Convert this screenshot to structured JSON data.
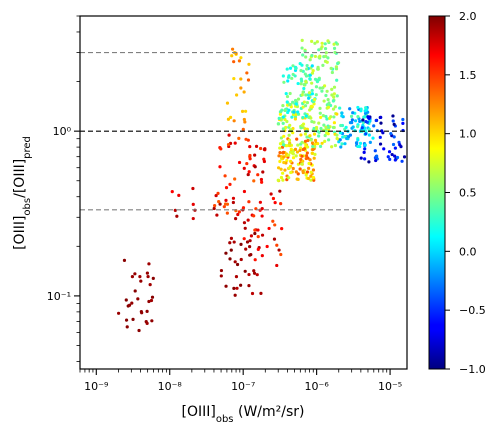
{
  "chart_data": {
    "type": "scatter",
    "title": "",
    "xlabel_html": "[OIII]<tspan baseline-shift='sub' font-size='10'>obs</tspan> (W/m²/sr)",
    "ylabel_html": "[OIII]<tspan baseline-shift='sub' font-size='10'>obs</tspan>/[OIII]<tspan baseline-shift='sub' font-size='10'>pred</tspan>",
    "xlabel_text": "[OIII]obs (W/m²/sr)",
    "ylabel_text": "[OIII]obs/[OIII]pred",
    "x_scale": "log",
    "y_scale": "log",
    "xlim": [
      6e-10,
      1.7e-05
    ],
    "ylim": [
      0.036,
      5.0
    ],
    "x_ticks": [
      {
        "value": 1e-09,
        "label": "10⁻⁹"
      },
      {
        "value": 1e-08,
        "label": "10⁻⁸"
      },
      {
        "value": 1e-07,
        "label": "10⁻⁷"
      },
      {
        "value": 1e-06,
        "label": "10⁻⁶"
      },
      {
        "value": 1e-05,
        "label": "10⁻⁵"
      }
    ],
    "y_ticks": [
      {
        "value": 0.1,
        "label": "10⁻¹"
      },
      {
        "value": 1.0,
        "label": "10⁰"
      }
    ],
    "reference_lines": [
      {
        "y": 3.0,
        "style": "dashed",
        "color": "#808080"
      },
      {
        "y": 1.0,
        "style": "dashed",
        "color": "#000000"
      },
      {
        "y": 0.333,
        "style": "dashed",
        "color": "#808080"
      }
    ],
    "grid": false,
    "colorbar": {
      "colormap": "jet",
      "min": -1.0,
      "max": 2.0,
      "ticks": [
        {
          "value": 2.0,
          "label": "2.0"
        },
        {
          "value": 1.5,
          "label": "1.5"
        },
        {
          "value": 1.0,
          "label": "1.0"
        },
        {
          "value": 0.5,
          "label": "0.5"
        },
        {
          "value": 0.0,
          "label": "0.0"
        },
        {
          "value": -0.5,
          "label": "−0.5"
        },
        {
          "value": -1.0,
          "label": "−1.0"
        }
      ]
    },
    "clusters": [
      {
        "x_range": [
          2e-09,
          6e-09
        ],
        "y_range": [
          0.055,
          0.19
        ],
        "c_range": [
          1.9,
          2.0
        ],
        "n": 30
      },
      {
        "x_range": [
          1e-08,
          2.5e-08
        ],
        "y_range": [
          0.22,
          0.45
        ],
        "c_range": [
          1.6,
          1.95
        ],
        "n": 8
      },
      {
        "x_range": [
          5e-08,
          1.8e-07
        ],
        "y_range": [
          0.1,
          0.3
        ],
        "c_range": [
          1.8,
          2.0
        ],
        "n": 35
      },
      {
        "x_range": [
          4e-08,
          2e-07
        ],
        "y_range": [
          0.3,
          1.0
        ],
        "c_range": [
          1.3,
          1.9
        ],
        "n": 60
      },
      {
        "x_range": [
          1e-07,
          3.5e-07
        ],
        "y_range": [
          0.15,
          0.45
        ],
        "c_range": [
          1.4,
          1.9
        ],
        "n": 35
      },
      {
        "x_range": [
          6e-08,
          1.2e-07
        ],
        "y_range": [
          1.0,
          3.4
        ],
        "c_range": [
          0.9,
          1.4
        ],
        "n": 25
      },
      {
        "x_range": [
          3e-07,
          1e-06
        ],
        "y_range": [
          0.5,
          0.9
        ],
        "c_range": [
          0.7,
          1.4
        ],
        "n": 120
      },
      {
        "x_range": [
          3e-07,
          2e-06
        ],
        "y_range": [
          0.8,
          1.5
        ],
        "c_range": [
          0.3,
          1.0
        ],
        "n": 150
      },
      {
        "x_range": [
          3.5e-07,
          1e-06
        ],
        "y_range": [
          1.2,
          2.6
        ],
        "c_range": [
          0.0,
          0.6
        ],
        "n": 70
      },
      {
        "x_range": [
          6e-07,
          2e-06
        ],
        "y_range": [
          1.5,
          3.6
        ],
        "c_range": [
          0.3,
          0.8
        ],
        "n": 90
      },
      {
        "x_range": [
          2e-06,
          6e-06
        ],
        "y_range": [
          0.8,
          1.4
        ],
        "c_range": [
          -0.3,
          0.4
        ],
        "n": 90
      },
      {
        "x_range": [
          4e-06,
          1.6e-05
        ],
        "y_range": [
          0.65,
          1.25
        ],
        "c_range": [
          -1.0,
          -0.3
        ],
        "n": 55
      }
    ]
  }
}
